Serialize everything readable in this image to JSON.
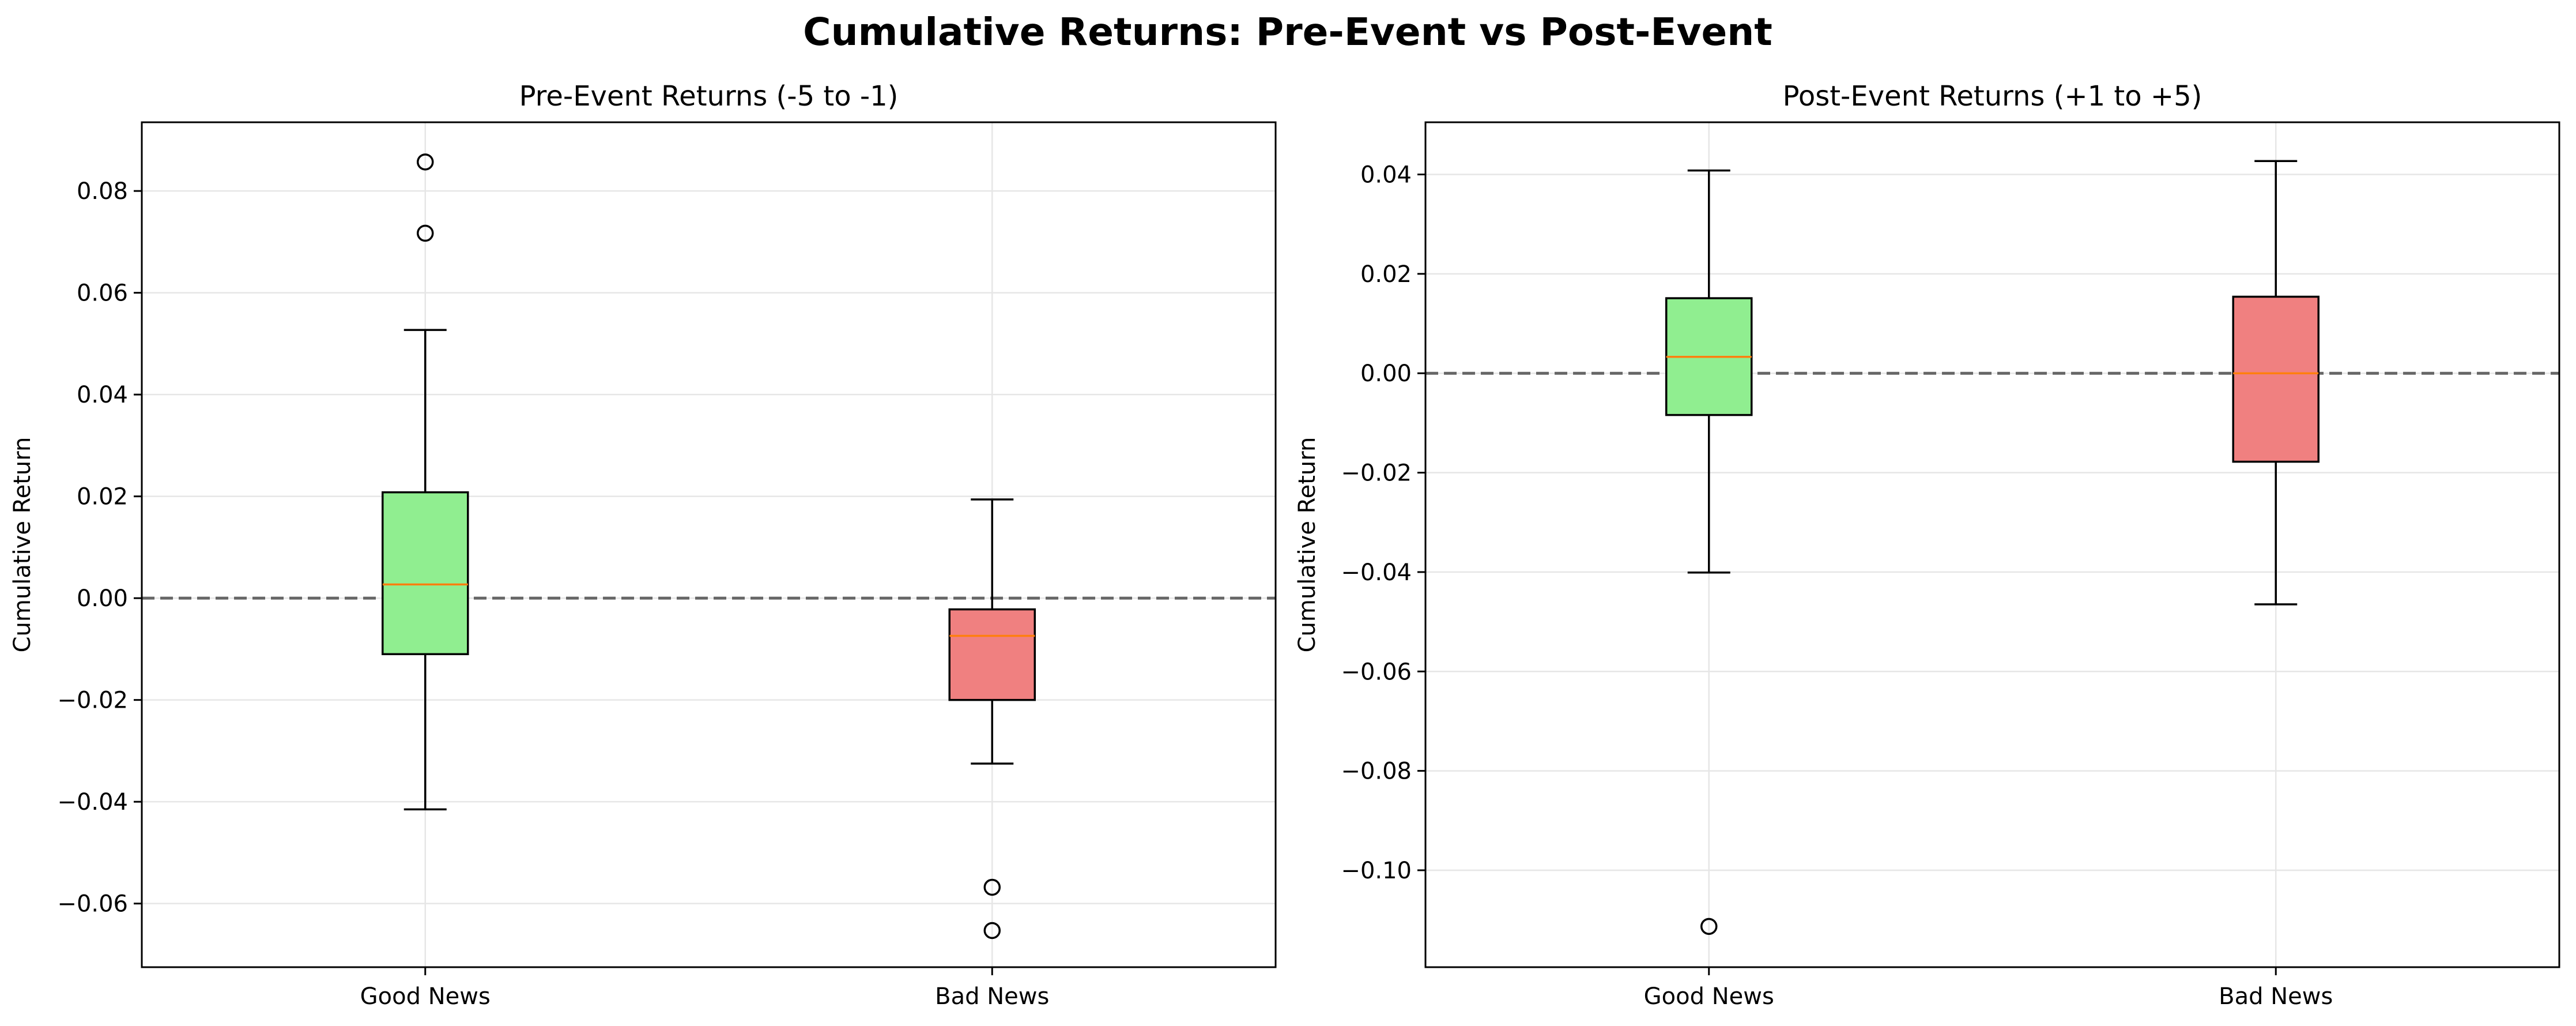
{
  "figure": {
    "title": "Cumulative Returns: Pre-Event vs Post-Event"
  },
  "colors": {
    "good_news_box": "#90ee90",
    "bad_news_box": "#f08080",
    "median_line": "#ff7f0e",
    "zero_line": "#666666",
    "grid": "#e6e6e6"
  },
  "chart_data": [
    {
      "type": "box",
      "title": "Pre-Event Returns (-5 to -1)",
      "xlabel": "",
      "ylabel": "Cumulative Return",
      "categories": [
        "Good News",
        "Bad News"
      ],
      "ylim": [
        -0.0725,
        0.0935
      ],
      "yticks": [
        -0.06,
        -0.04,
        -0.02,
        0.0,
        0.02,
        0.04,
        0.06,
        0.08
      ],
      "ytick_labels": [
        "−0.06",
        "−0.04",
        "−0.02",
        "0.00",
        "0.02",
        "0.04",
        "0.06",
        "0.08"
      ],
      "reference_line": 0.0,
      "grid": true,
      "boxes": [
        {
          "category": "Good News",
          "whisker_low": -0.0415,
          "q1": -0.011,
          "median": 0.0027,
          "q3": 0.0208,
          "whisker_high": 0.0527,
          "outliers": [
            0.0717,
            0.0857
          ]
        },
        {
          "category": "Bad News",
          "whisker_low": -0.0325,
          "q1": -0.02,
          "median": -0.0074,
          "q3": -0.0022,
          "whisker_high": 0.0194,
          "outliers": [
            -0.0568,
            -0.0653
          ]
        }
      ]
    },
    {
      "type": "box",
      "title": "Post-Event Returns (+1 to +5)",
      "xlabel": "",
      "ylabel": "Cumulative Return",
      "categories": [
        "Good News",
        "Bad News"
      ],
      "ylim": [
        -0.1195,
        0.0505
      ],
      "yticks": [
        -0.1,
        -0.08,
        -0.06,
        -0.04,
        -0.02,
        0.0,
        0.02,
        0.04
      ],
      "ytick_labels": [
        "−0.10",
        "−0.08",
        "−0.06",
        "−0.04",
        "−0.02",
        "0.00",
        "0.02",
        "0.04"
      ],
      "reference_line": 0.0,
      "grid": true,
      "boxes": [
        {
          "category": "Good News",
          "whisker_low": -0.0401,
          "q1": -0.0084,
          "median": 0.0033,
          "q3": 0.0151,
          "whisker_high": 0.0408,
          "outliers": [
            -0.1113
          ]
        },
        {
          "category": "Bad News",
          "whisker_low": -0.0465,
          "q1": -0.0178,
          "median": 0.0,
          "q3": 0.0154,
          "whisker_high": 0.0427,
          "outliers": []
        }
      ]
    }
  ]
}
